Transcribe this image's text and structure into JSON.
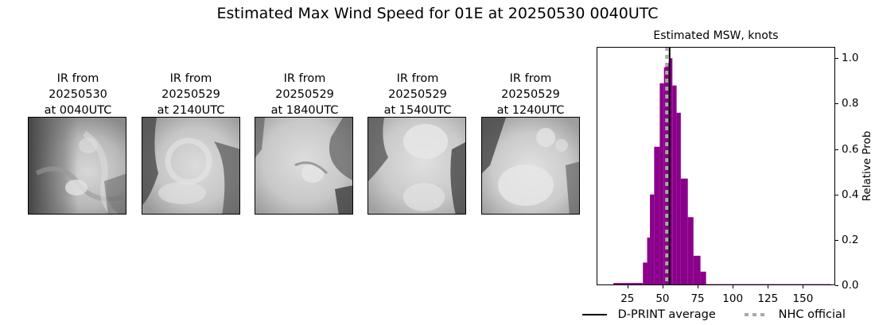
{
  "suptitle": "Estimated Max Wind Speed for 01E at 20250530 0040UTC",
  "thumbnails": [
    {
      "line1": "IR from",
      "line2": "20250530",
      "line3": "at 0040UTC"
    },
    {
      "line1": "IR from",
      "line2": "20250529",
      "line3": "at 2140UTC"
    },
    {
      "line1": "IR from",
      "line2": "20250529",
      "line3": "at 1840UTC"
    },
    {
      "line1": "IR from",
      "line2": "20250529",
      "line3": "at 1540UTC"
    },
    {
      "line1": "IR from",
      "line2": "20250529",
      "line3": "at 1240UTC"
    }
  ],
  "chart_data": {
    "type": "bar",
    "title": "Estimated MSW, knots",
    "xlabel": "",
    "ylabel": "Relative Prob",
    "xlim": [
      3,
      173
    ],
    "ylim": [
      0,
      1.05
    ],
    "xticks": [
      25,
      50,
      75,
      100,
      125,
      150
    ],
    "yticks": [
      0.0,
      0.2,
      0.4,
      0.6,
      0.8,
      1.0
    ],
    "ytick_labels": [
      "0.0",
      "0.2",
      "0.4",
      "0.6",
      "0.8",
      "1.0"
    ],
    "yaxis_position": "right",
    "grid": false,
    "bar_color": "#8b008b",
    "bins": [
      {
        "x0": 15,
        "x1": 36,
        "value": 0.01
      },
      {
        "x0": 36,
        "x1": 39,
        "value": 0.1
      },
      {
        "x0": 39,
        "x1": 41,
        "value": 0.21
      },
      {
        "x0": 41,
        "x1": 44,
        "value": 0.4
      },
      {
        "x0": 44,
        "x1": 48,
        "value": 0.61
      },
      {
        "x0": 48,
        "x1": 51,
        "value": 0.89
      },
      {
        "x0": 51,
        "x1": 52,
        "value": 0.96
      },
      {
        "x0": 52,
        "x1": 55,
        "value": 0.98
      },
      {
        "x0": 55,
        "x1": 57,
        "value": 1.0
      },
      {
        "x0": 57,
        "x1": 60,
        "value": 0.88
      },
      {
        "x0": 60,
        "x1": 63,
        "value": 0.76
      },
      {
        "x0": 63,
        "x1": 68,
        "value": 0.47
      },
      {
        "x0": 68,
        "x1": 72,
        "value": 0.3
      },
      {
        "x0": 72,
        "x1": 77,
        "value": 0.13
      },
      {
        "x0": 77,
        "x1": 81,
        "value": 0.06
      },
      {
        "x0": 81,
        "x1": 170,
        "value": 0.005
      }
    ],
    "lines": [
      {
        "name": "D-PRINT average",
        "x": 55,
        "style": "solid",
        "color": "#000000"
      },
      {
        "name": "NHC official",
        "x": 53,
        "style": "dotted",
        "color": "#a9a9a9"
      }
    ],
    "legend": [
      "D-PRINT average",
      "NHC official"
    ],
    "legend_position": "bottom"
  }
}
